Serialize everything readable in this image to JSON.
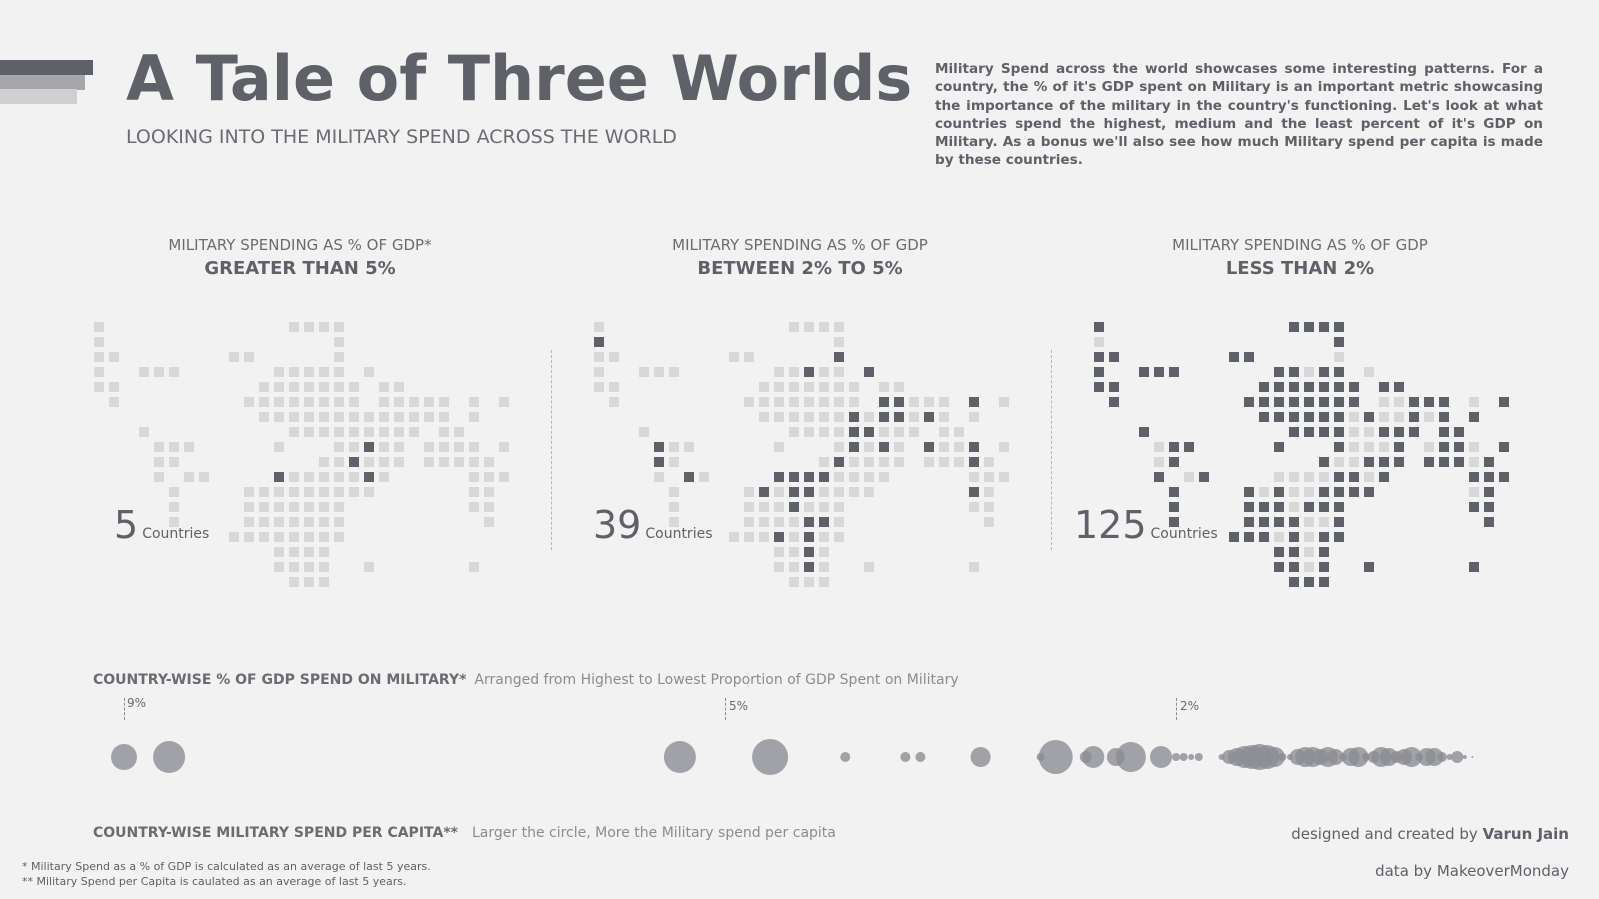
{
  "header": {
    "title": "A Tale of Three Worlds",
    "subtitle": "LOOKING INTO THE MILITARY SPEND ACROSS THE WORLD",
    "intro": "Military Spend across the world showcases some interesting patterns. For a country, the % of it's GDP spent on Military is an important metric showcasing the importance of the military in the country's functioning. Let's look at what countries spend the highest, medium and the least percent of it's GDP on Military. As a bonus we'll also see how much Military spend per capita is made by these countries.",
    "colors": {
      "dark": "#5f6168",
      "light": "#d8d8d8",
      "background": "#f2f2f2",
      "bubble": "#8c8d94"
    }
  },
  "panels": [
    {
      "line1": "MILITARY SPENDING AS % OF GDP*",
      "line2": "GREATER THAN 5%",
      "count": "5",
      "count_label": "Countries"
    },
    {
      "line1": "MILITARY SPENDING AS % OF GDP",
      "line2": "BETWEEN 2% TO 5%",
      "count": "39",
      "count_label": "Countries"
    },
    {
      "line1": "MILITARY SPENDING AS % OF GDP",
      "line2": "LESS THAN 2%",
      "count": "125",
      "count_label": "Countries"
    }
  ],
  "gdp_section": {
    "title": "COUNTRY-WISE % OF GDP SPEND ON MILITARY*",
    "note": "Arranged from Highest to Lowest Proportion of GDP Spent on Military",
    "ticks": [
      "9%",
      "5%",
      "2%"
    ]
  },
  "percap_section": {
    "title": "COUNTRY-WISE MILITARY SPEND PER CAPITA**",
    "note": "Larger the circle, More the Military spend per capita"
  },
  "credits": {
    "designed_prefix": "designed and created by",
    "designer": "Varun Jain",
    "data_by": "data by MakeoverMonday"
  },
  "footnotes": [
    "* Military Spend as a % of GDP is calculated as an average of last 5 years.",
    "** Military Spend per Capita is caulated as an average of last 5 years."
  ],
  "chart_data": {
    "type": "scatter",
    "title": "COUNTRY-WISE % OF GDP SPEND ON MILITARY*",
    "x_label": "% of GDP spent on military",
    "size_label": "Military spend per capita",
    "ticks": [
      9,
      5,
      2
    ],
    "points": [
      {
        "x": 9.0,
        "size": 13
      },
      {
        "x": 8.7,
        "size": 16
      },
      {
        "x": 5.3,
        "size": 16
      },
      {
        "x": 4.7,
        "size": 18
      },
      {
        "x": 4.2,
        "size": 5
      },
      {
        "x": 3.8,
        "size": 5
      },
      {
        "x": 3.7,
        "size": 5
      },
      {
        "x": 3.3,
        "size": 10
      },
      {
        "x": 2.9,
        "size": 4
      },
      {
        "x": 2.8,
        "size": 17
      },
      {
        "x": 2.6,
        "size": 6
      },
      {
        "x": 2.55,
        "size": 11
      },
      {
        "x": 2.4,
        "size": 9
      },
      {
        "x": 2.3,
        "size": 15
      },
      {
        "x": 2.1,
        "size": 11
      },
      {
        "x": 2.0,
        "size": 4
      },
      {
        "x": 1.95,
        "size": 4
      },
      {
        "x": 1.9,
        "size": 3
      },
      {
        "x": 1.85,
        "size": 4
      },
      {
        "x": 1.7,
        "size": 3
      },
      {
        "x": 1.65,
        "size": 7
      },
      {
        "x": 1.6,
        "size": 9
      },
      {
        "x": 1.55,
        "size": 11
      },
      {
        "x": 1.5,
        "size": 12
      },
      {
        "x": 1.45,
        "size": 13
      },
      {
        "x": 1.4,
        "size": 12
      },
      {
        "x": 1.35,
        "size": 10
      },
      {
        "x": 1.3,
        "size": 4
      },
      {
        "x": 1.25,
        "size": 3
      },
      {
        "x": 1.2,
        "size": 8
      },
      {
        "x": 1.15,
        "size": 10
      },
      {
        "x": 1.1,
        "size": 10
      },
      {
        "x": 1.05,
        "size": 8
      },
      {
        "x": 1.0,
        "size": 10
      },
      {
        "x": 0.95,
        "size": 8
      },
      {
        "x": 0.9,
        "size": 4
      },
      {
        "x": 0.85,
        "size": 9
      },
      {
        "x": 0.8,
        "size": 10
      },
      {
        "x": 0.75,
        "size": 4
      },
      {
        "x": 0.7,
        "size": 6
      },
      {
        "x": 0.65,
        "size": 10
      },
      {
        "x": 0.6,
        "size": 9
      },
      {
        "x": 0.55,
        "size": 6
      },
      {
        "x": 0.5,
        "size": 8
      },
      {
        "x": 0.45,
        "size": 10
      },
      {
        "x": 0.4,
        "size": 4
      },
      {
        "x": 0.35,
        "size": 9
      },
      {
        "x": 0.3,
        "size": 9
      },
      {
        "x": 0.25,
        "size": 5
      },
      {
        "x": 0.2,
        "size": 3
      },
      {
        "x": 0.15,
        "size": 6
      },
      {
        "x": 0.1,
        "size": 2
      },
      {
        "x": 0.05,
        "size": 1
      }
    ]
  }
}
